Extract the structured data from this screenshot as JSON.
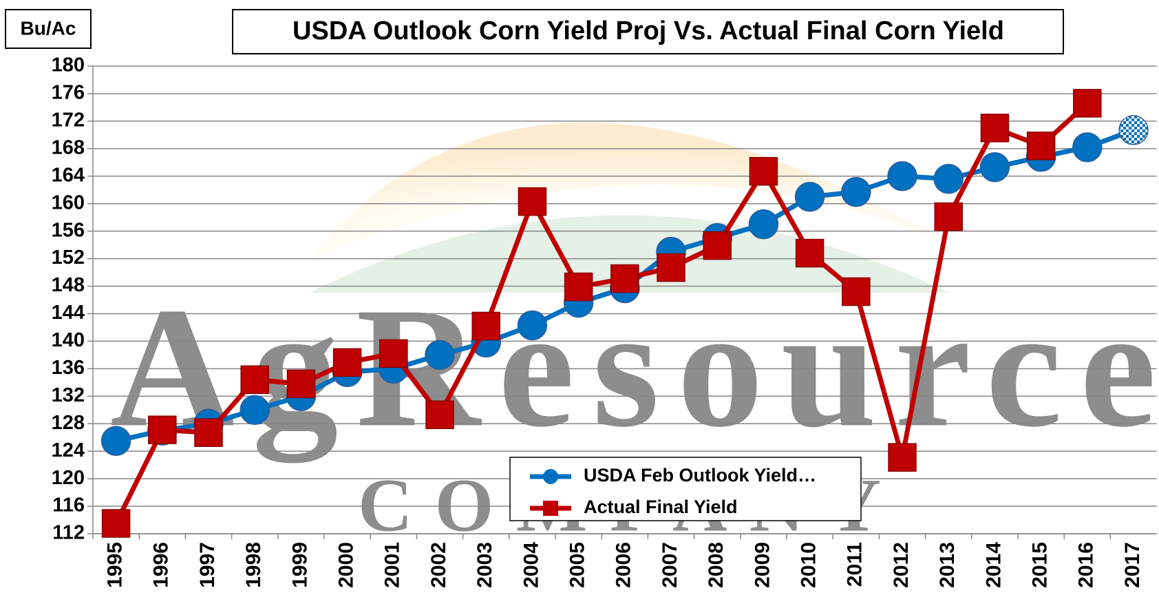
{
  "chart_data": {
    "type": "line",
    "title": "USDA Outlook Corn Yield Proj Vs. Actual Final Corn Yield",
    "y_label": "Bu/Ac",
    "watermark": "AgResource",
    "watermark_sub": "COMPANY",
    "categories": [
      "1995",
      "1996",
      "1997",
      "1998",
      "1999",
      "2000",
      "2001",
      "2002",
      "2003",
      "2004",
      "2005",
      "2006",
      "2007",
      "2008",
      "2009",
      "2010",
      "2011",
      "2012",
      "2013",
      "2014",
      "2015",
      "2016",
      "2017"
    ],
    "series": [
      {
        "name": "USDA Feb Outlook Yield…",
        "color": "#0070c0",
        "marker": "circle",
        "values": [
          125.5,
          127,
          128,
          130,
          132,
          135.5,
          136,
          138,
          139.8,
          142.3,
          145.6,
          147.7,
          153,
          155,
          157,
          161,
          161.7,
          164,
          163.6,
          165.3,
          166.8,
          168.2,
          170.7
        ]
      },
      {
        "name": "Actual Final Yield",
        "color": "#c00000",
        "marker": "square",
        "values": [
          113.5,
          127.1,
          126.7,
          134.4,
          133.8,
          136.9,
          138.2,
          129.3,
          142.2,
          160.3,
          147.9,
          149.1,
          150.7,
          153.9,
          164.7,
          152.8,
          147.2,
          123.1,
          158.1,
          171,
          168.4,
          174.6,
          null
        ]
      }
    ],
    "ylim": [
      112,
      180
    ],
    "yticks": [
      112,
      116,
      120,
      124,
      128,
      132,
      136,
      140,
      144,
      148,
      152,
      156,
      160,
      164,
      168,
      172,
      176,
      180
    ],
    "grid": true
  }
}
